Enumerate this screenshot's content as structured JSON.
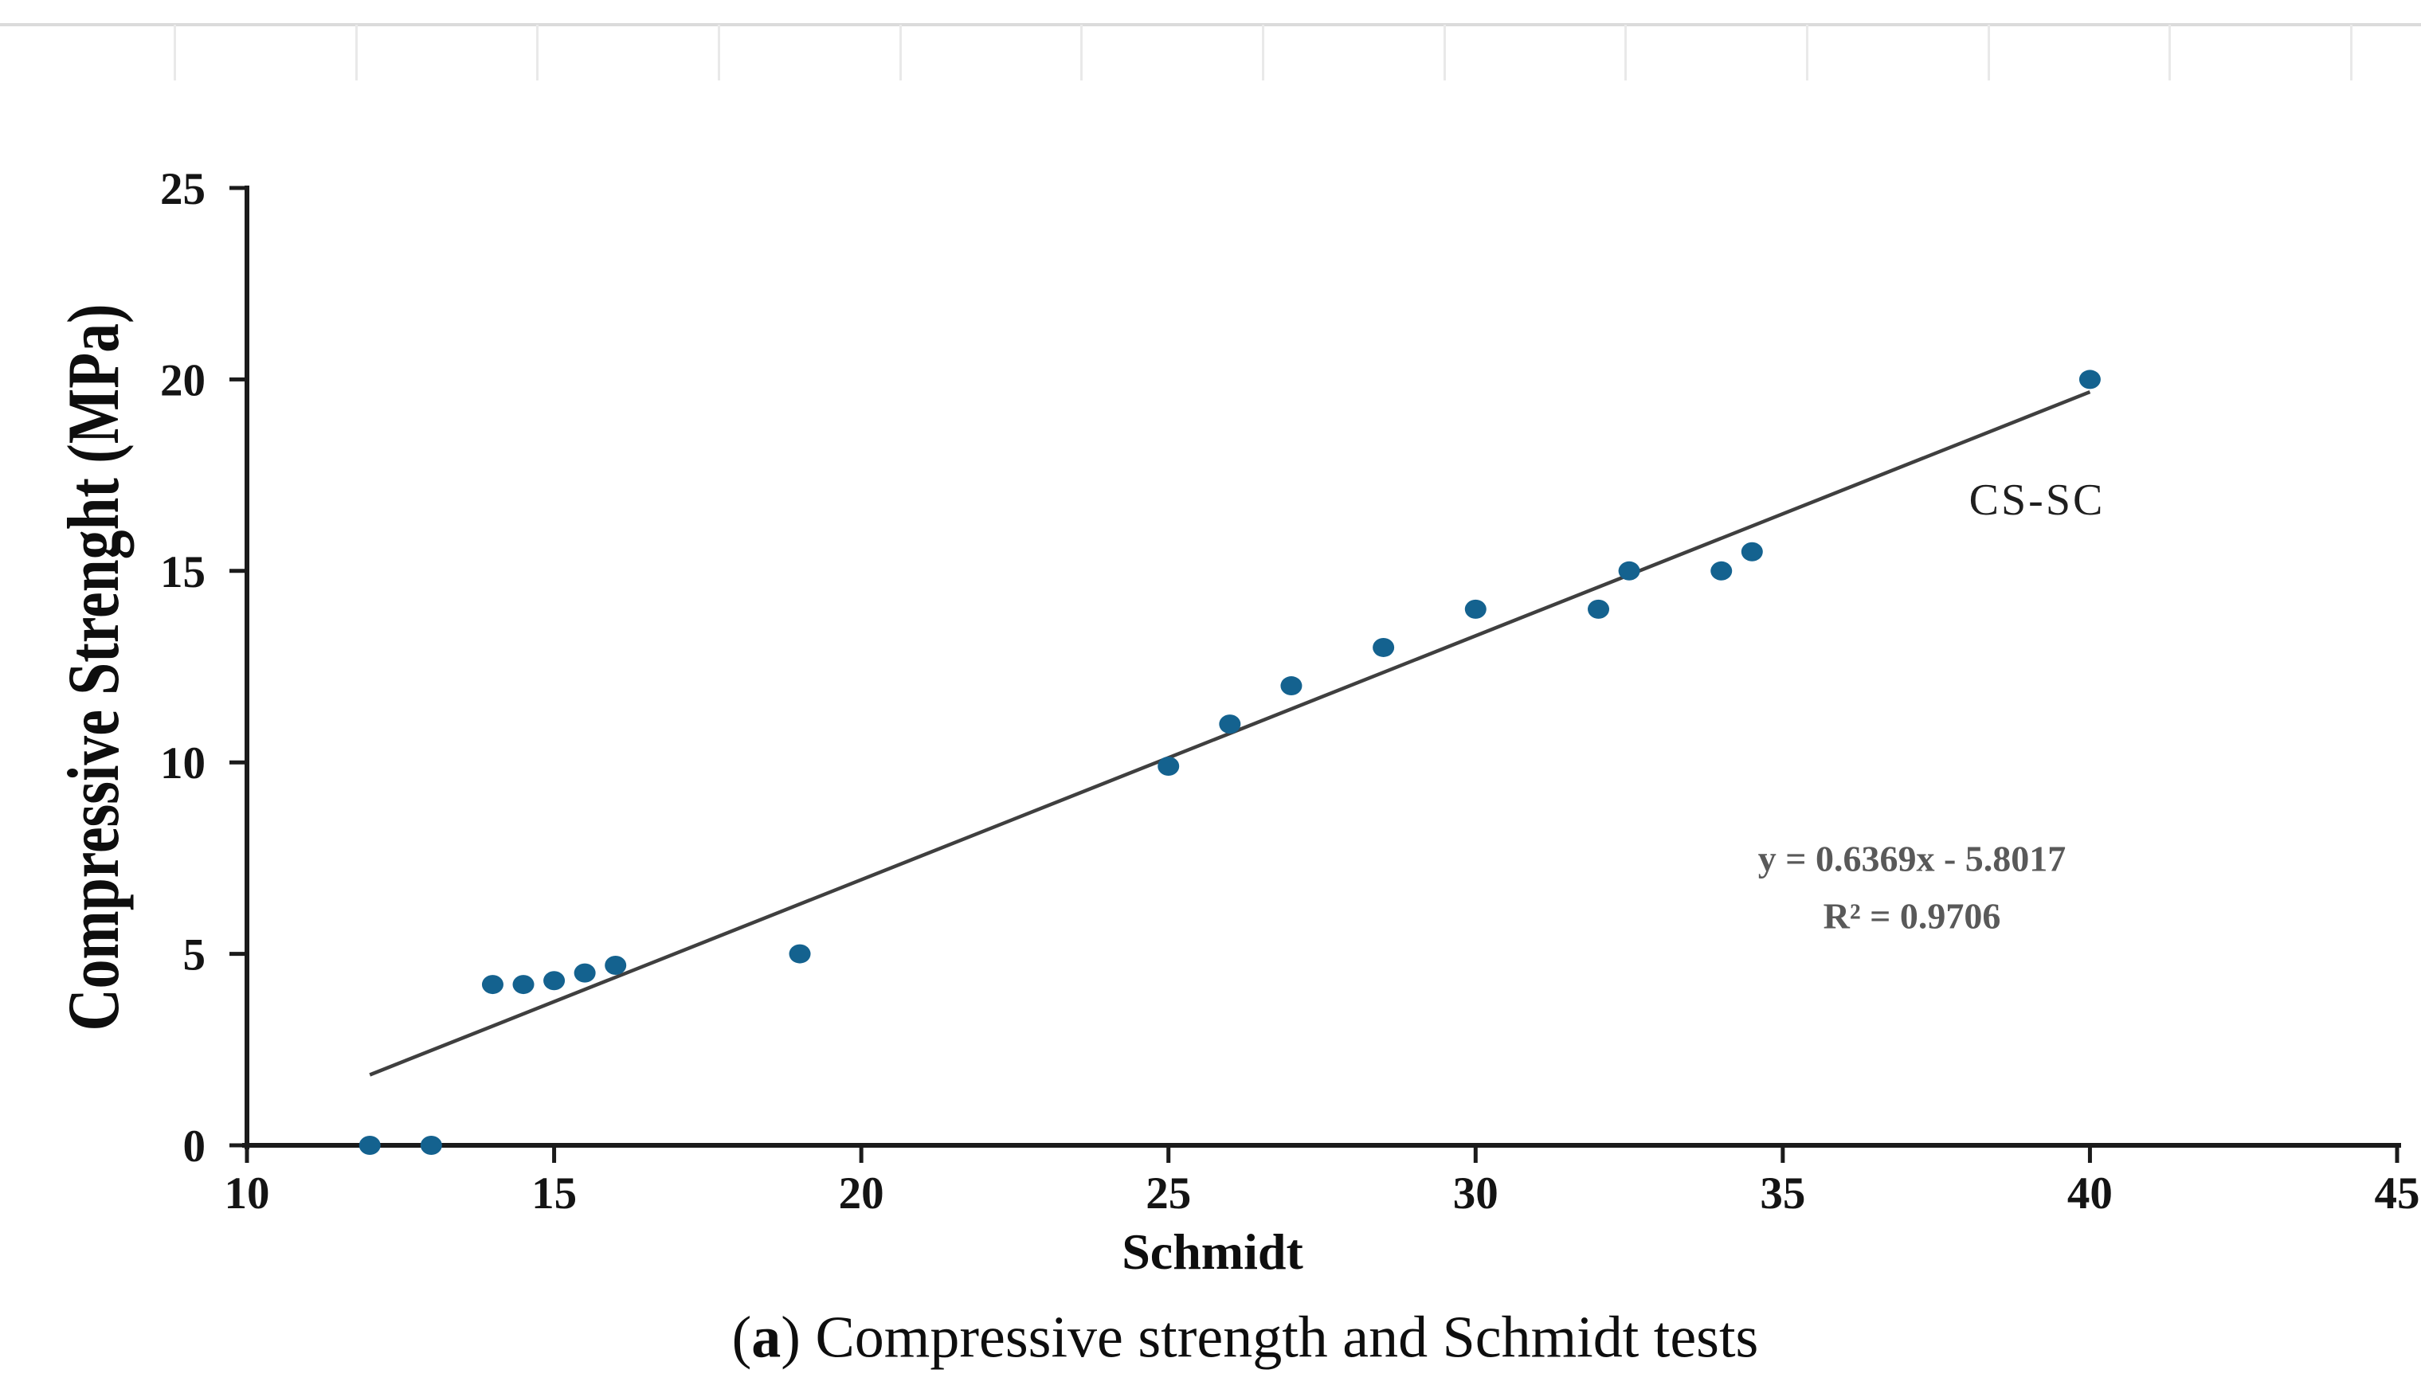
{
  "figure": {
    "caption": {
      "open": "(",
      "label": "a",
      "rest": ") Compressive strength and Schmidt tests"
    }
  },
  "chart_data": {
    "type": "scatter",
    "title": "",
    "xlabel": "Schmidt",
    "ylabel": "Compressive Strenght (MPa)",
    "xlim": [
      10,
      45
    ],
    "ylim": [
      0,
      25
    ],
    "xticks": [
      10,
      15,
      20,
      25,
      30,
      35,
      40,
      45
    ],
    "yticks": [
      0,
      5,
      10,
      15,
      20,
      25
    ],
    "grid": false,
    "legend_position": "none",
    "axis_color": "#1b1b1b",
    "series": [
      {
        "name": "CS-SC",
        "marker": "circle",
        "marker_color": "#14628F",
        "points": [
          [
            12,
            0
          ],
          [
            13,
            0
          ],
          [
            14,
            4.2
          ],
          [
            14.5,
            4.2
          ],
          [
            15,
            4.3
          ],
          [
            15.5,
            4.5
          ],
          [
            16,
            4.7
          ],
          [
            19,
            5
          ],
          [
            25,
            9.9
          ],
          [
            26,
            11
          ],
          [
            27,
            12
          ],
          [
            28.5,
            13
          ],
          [
            30,
            14
          ],
          [
            32,
            14
          ],
          [
            32.5,
            15
          ],
          [
            34,
            15
          ],
          [
            34.5,
            15.5
          ],
          [
            40,
            20
          ]
        ]
      }
    ],
    "trendline": {
      "slope": 0.6369,
      "intercept": -5.8017,
      "x_start": 12,
      "x_end": 40,
      "color": "#3f3f3f",
      "equation": "y = 0.6369x - 5.8017",
      "r_squared_label": "R² = 0.9706"
    }
  }
}
